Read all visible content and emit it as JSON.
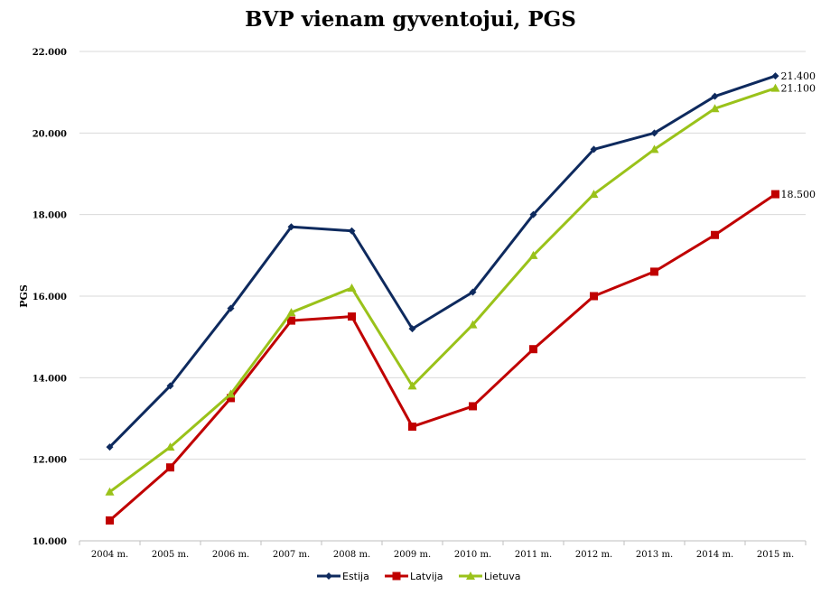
{
  "chart_data": {
    "type": "line",
    "title": "BVP vienam gyventojui, PGS",
    "xlabel": "",
    "ylabel": "PGS",
    "ylim": [
      10000,
      22000
    ],
    "yticks": [
      10000,
      12000,
      14000,
      16000,
      18000,
      20000,
      22000
    ],
    "ytick_labels": [
      "10.000",
      "12.000",
      "14.000",
      "16.000",
      "18.000",
      "20.000",
      "22.000"
    ],
    "categories": [
      "2004 m.",
      "2005 m.",
      "2006 m.",
      "2007 m.",
      "2008 m.",
      "2009 m.",
      "2010 m.",
      "2011 m.",
      "2012 m.",
      "2013 m.",
      "2014 m.",
      "2015 m."
    ],
    "grid": true,
    "legend_position": "bottom",
    "series": [
      {
        "name": "Estija",
        "color": "#0e2a5e",
        "marker": "diamond",
        "values": [
          12300,
          13800,
          15700,
          17700,
          17600,
          15200,
          16100,
          18000,
          19600,
          20000,
          20900,
          21400
        ],
        "end_label": "21.400"
      },
      {
        "name": "Latvija",
        "color": "#c00000",
        "marker": "square",
        "values": [
          10500,
          11800,
          13500,
          15400,
          15500,
          12800,
          13300,
          14700,
          16000,
          16600,
          17500,
          18500
        ],
        "end_label": "18.500"
      },
      {
        "name": "Lietuva",
        "color": "#9ac21a",
        "marker": "triangle",
        "values": [
          11200,
          12300,
          13600,
          15600,
          16200,
          13800,
          15300,
          17000,
          18500,
          19600,
          20600,
          21100
        ],
        "end_label": "21.100"
      }
    ]
  }
}
